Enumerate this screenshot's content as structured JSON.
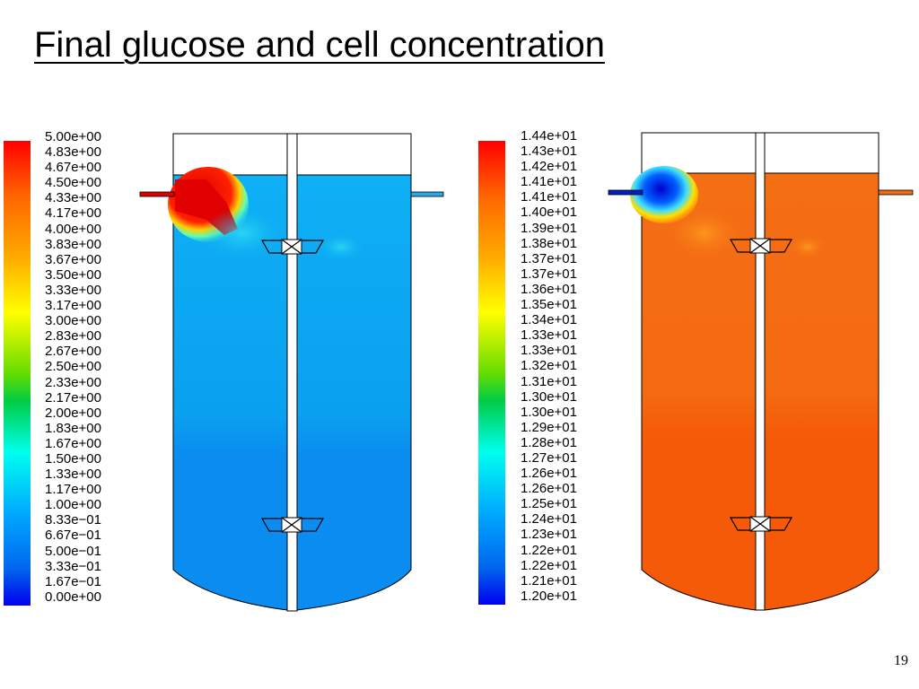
{
  "slide": {
    "title": "Final glucose and cell concentration",
    "page_number": "19"
  },
  "colors": {
    "glucose_background": "#0aa4f0",
    "glucose_lower": "#0a8cf0",
    "glucose_hotspot": "#e00000",
    "cell_background": "#f56a12",
    "cell_lower": "#f55a08",
    "cell_lowspot": "#0000e0",
    "inlet_left": "#e00000",
    "inlet_right_glucose": "#29a8e8",
    "inlet_left_cell": "#0020c0",
    "inlet_right_cell": "#f06a10"
  },
  "glucose_legend": {
    "labels": [
      "5.00e+00",
      "4.83e+00",
      "4.67e+00",
      "4.50e+00",
      "4.33e+00",
      "4.17e+00",
      "4.00e+00",
      "3.83e+00",
      "3.67e+00",
      "3.50e+00",
      "3.33e+00",
      "3.17e+00",
      "3.00e+00",
      "2.83e+00",
      "2.67e+00",
      "2.50e+00",
      "2.33e+00",
      "2.17e+00",
      "2.00e+00",
      "1.83e+00",
      "1.67e+00",
      "1.50e+00",
      "1.33e+00",
      "1.17e+00",
      "1.00e+00",
      "8.33e−01",
      "6.67e−01",
      "5.00e−01",
      "3.33e−01",
      "1.67e−01",
      "0.00e+00"
    ]
  },
  "cell_legend": {
    "labels": [
      "1.44e+01",
      "1.43e+01",
      "1.42e+01",
      "1.41e+01",
      "1.41e+01",
      "1.40e+01",
      "1.39e+01",
      "1.38e+01",
      "1.37e+01",
      "1.37e+01",
      "1.36e+01",
      "1.35e+01",
      "1.34e+01",
      "1.33e+01",
      "1.33e+01",
      "1.32e+01",
      "1.31e+01",
      "1.30e+01",
      "1.30e+01",
      "1.29e+01",
      "1.28e+01",
      "1.27e+01",
      "1.26e+01",
      "1.26e+01",
      "1.25e+01",
      "1.24e+01",
      "1.23e+01",
      "1.22e+01",
      "1.22e+01",
      "1.21e+01",
      "1.20e+01"
    ]
  }
}
